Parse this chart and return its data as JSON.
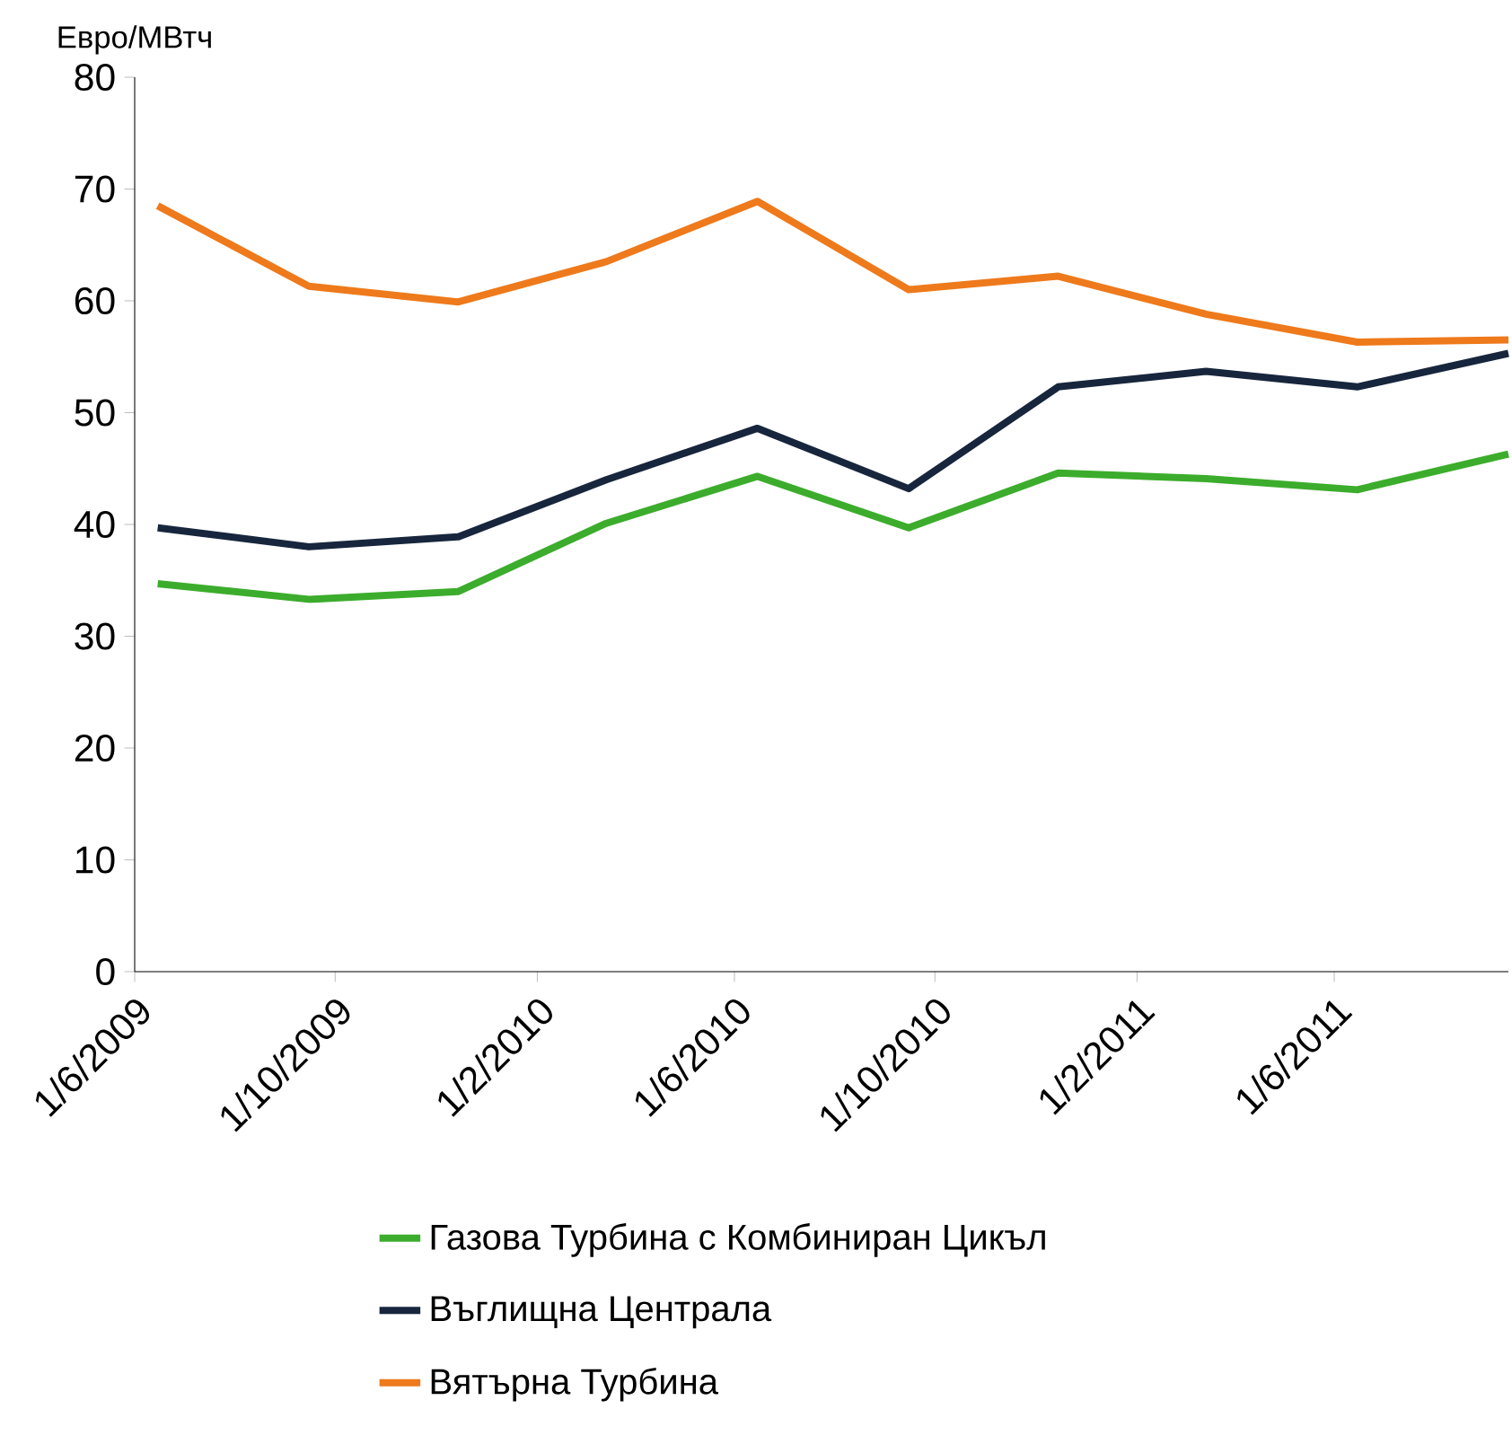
{
  "chart_data": {
    "type": "line",
    "ylabel": "Евро/МВтч",
    "x": [
      "2009-06-15",
      "2009-09-15",
      "2009-12-15",
      "2010-03-15",
      "2010-06-15",
      "2010-09-15",
      "2010-12-15",
      "2011-03-15",
      "2011-06-15",
      "2011-09-15"
    ],
    "series": [
      {
        "name": "Газова Турбина с Комбиниран Цикъл",
        "color": "#3cac2c",
        "values": [
          34.7,
          33.3,
          34.0,
          40.1,
          44.3,
          39.7,
          44.6,
          44.1,
          43.1,
          46.3
        ]
      },
      {
        "name": "Въглищна Централа",
        "color": "#17263c",
        "values": [
          39.7,
          38.0,
          38.9,
          44.0,
          48.6,
          43.2,
          52.3,
          53.7,
          52.3,
          55.3
        ]
      },
      {
        "name": "Вятърна Турбина",
        "color": "#ee7a1c",
        "values": [
          68.5,
          61.3,
          59.9,
          63.5,
          68.9,
          61.0,
          62.2,
          58.8,
          56.3,
          56.5
        ]
      }
    ],
    "xlim": [
      "2009-06-01",
      "2011-09-15"
    ],
    "xticks": [
      {
        "value": "2009-06-01",
        "label": "1/6/2009"
      },
      {
        "value": "2009-10-01",
        "label": "1/10/2009"
      },
      {
        "value": "2010-02-01",
        "label": "1/2/2010"
      },
      {
        "value": "2010-06-01",
        "label": "1/6/2010"
      },
      {
        "value": "2010-10-01",
        "label": "1/10/2010"
      },
      {
        "value": "2011-02-01",
        "label": "1/2/2011"
      },
      {
        "value": "2011-06-01",
        "label": "1/6/2011"
      }
    ],
    "ylim": [
      0,
      80
    ],
    "yticks": [
      0,
      10,
      20,
      30,
      40,
      50,
      60,
      70,
      80
    ],
    "grid": false,
    "legend": "bottom",
    "marker": "none",
    "line_style": "solid"
  }
}
